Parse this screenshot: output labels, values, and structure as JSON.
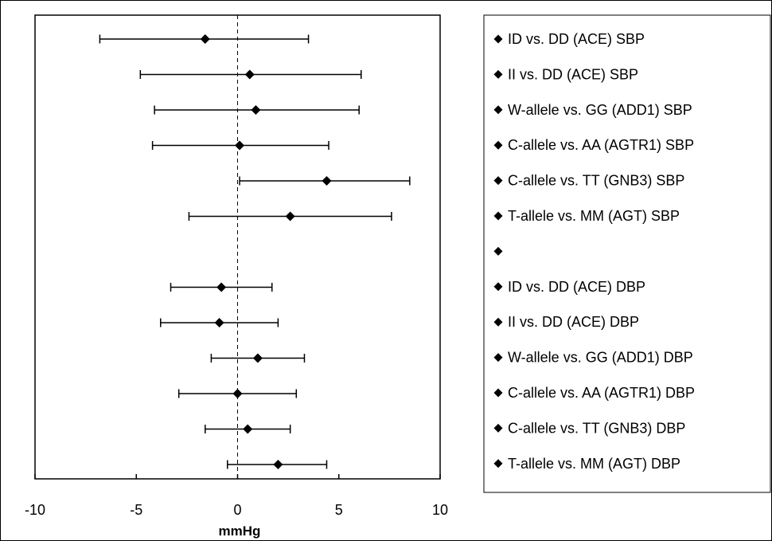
{
  "chart_data": {
    "type": "forest",
    "xlabel": "mmHg",
    "xlim": [
      -10,
      10
    ],
    "xticks": [
      -10,
      -5,
      0,
      5,
      10
    ],
    "reference_line_x": 0,
    "grid": false,
    "legend_position": "right",
    "marker": "diamond",
    "series": [
      {
        "name": "ID vs. DD (ACE) SBP",
        "estimate": -1.6,
        "lower": -6.8,
        "upper": 3.5
      },
      {
        "name": "II vs. DD (ACE) SBP",
        "estimate": 0.6,
        "lower": -4.8,
        "upper": 6.1
      },
      {
        "name": "W-allele vs. GG (ADD1) SBP",
        "estimate": 0.9,
        "lower": -4.1,
        "upper": 6.0
      },
      {
        "name": "C-allele vs. AA (AGTR1) SBP",
        "estimate": 0.1,
        "lower": -4.2,
        "upper": 4.5
      },
      {
        "name": "C-allele vs. TT (GNB3) SBP",
        "estimate": 4.4,
        "lower": 0.1,
        "upper": 8.5
      },
      {
        "name": "T-allele vs. MM (AGT) SBP",
        "estimate": 2.6,
        "lower": -2.4,
        "upper": 7.6
      },
      {
        "name": "",
        "estimate": null,
        "lower": null,
        "upper": null
      },
      {
        "name": "ID vs. DD (ACE) DBP",
        "estimate": -0.8,
        "lower": -3.3,
        "upper": 1.7
      },
      {
        "name": "II vs. DD (ACE) DBP",
        "estimate": -0.9,
        "lower": -3.8,
        "upper": 2.0
      },
      {
        "name": "W-allele vs. GG (ADD1) DBP",
        "estimate": 1.0,
        "lower": -1.3,
        "upper": 3.3
      },
      {
        "name": "C-allele vs. AA (AGTR1) DBP",
        "estimate": 0.0,
        "lower": -2.9,
        "upper": 2.9
      },
      {
        "name": "C-allele vs. TT (GNB3) DBP",
        "estimate": 0.5,
        "lower": -1.6,
        "upper": 2.6
      },
      {
        "name": "T-allele vs. MM (AGT) DBP",
        "estimate": 2.0,
        "lower": -0.5,
        "upper": 4.4
      }
    ]
  }
}
